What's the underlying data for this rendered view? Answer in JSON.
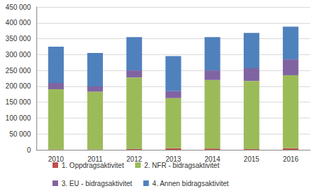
{
  "chart_data": {
    "type": "bar",
    "stacked": true,
    "grid": true,
    "legend": "bottom",
    "categories": [
      "2010",
      "2011",
      "2012",
      "2013",
      "2014",
      "2015",
      "2016"
    ],
    "series": [
      {
        "name": "1. Oppdragsaktivitet",
        "color": "#c0504d",
        "values": [
          1000,
          1000,
          3000,
          5000,
          4000,
          2000,
          5000
        ]
      },
      {
        "name": "2. NFR - bidragsaktivitet",
        "color": "#9bbb59",
        "values": [
          190000,
          182000,
          225000,
          158000,
          216000,
          215000,
          230000
        ]
      },
      {
        "name": "3. EU - bidragsaktivitet",
        "color": "#8064a2",
        "values": [
          20000,
          17000,
          22000,
          22000,
          30000,
          40000,
          50000
        ]
      },
      {
        "name": "4. Annen bidragsaktivitet",
        "color": "#4f81bd",
        "values": [
          114000,
          105000,
          105000,
          110000,
          105000,
          111000,
          103000
        ]
      }
    ],
    "ylim": [
      0,
      450000
    ],
    "yticks": [
      {
        "value": 0,
        "label": "0"
      },
      {
        "value": 50000,
        "label": "50 000"
      },
      {
        "value": 100000,
        "label": "100 000"
      },
      {
        "value": 150000,
        "label": "150 000"
      },
      {
        "value": 200000,
        "label": "200 000"
      },
      {
        "value": 250000,
        "label": "250 000"
      },
      {
        "value": 300000,
        "label": "300 000"
      },
      {
        "value": 350000,
        "label": "350 000"
      },
      {
        "value": 400000,
        "label": "400 000"
      },
      {
        "value": 450000,
        "label": "450 000"
      }
    ]
  }
}
